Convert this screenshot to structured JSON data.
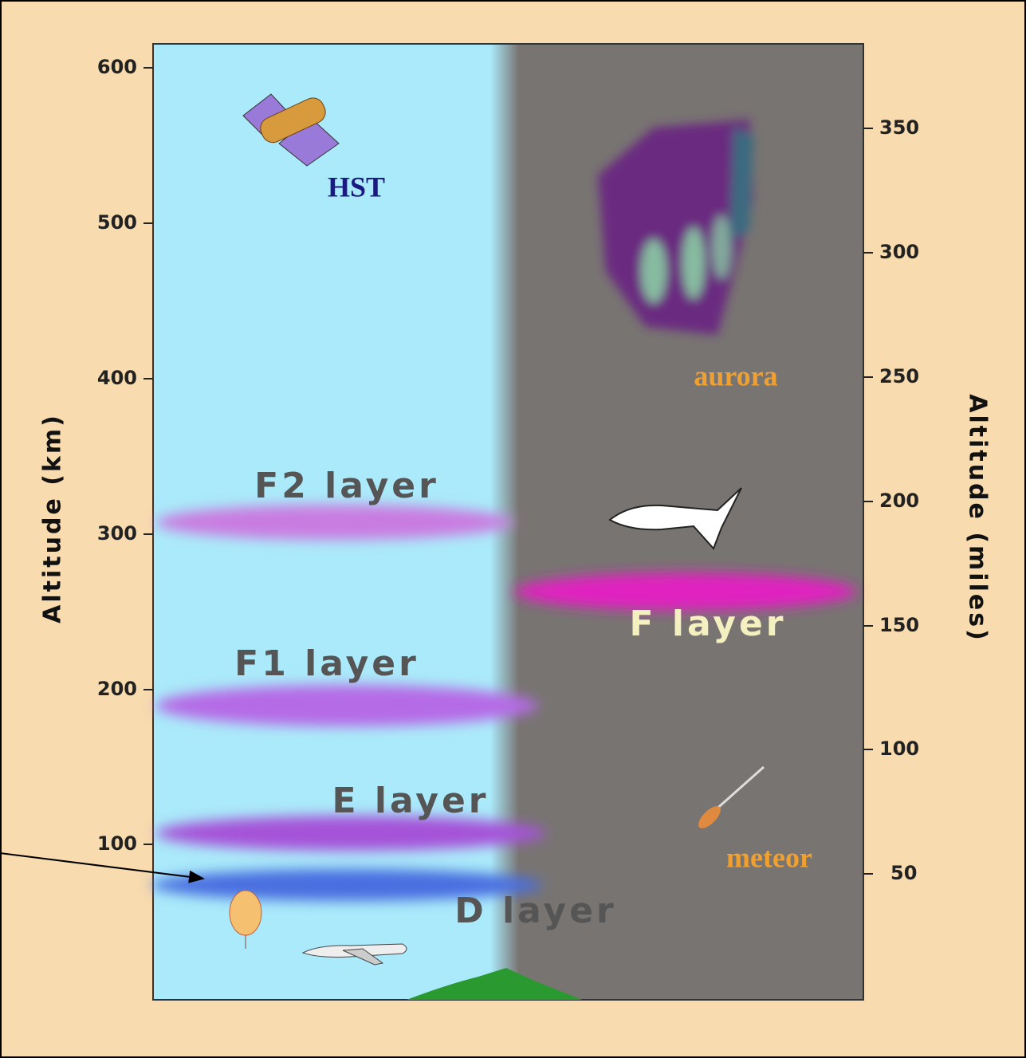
{
  "left_axis": {
    "label": "Altitude  (km)",
    "ticks": [
      600,
      500,
      400,
      300,
      200,
      100
    ]
  },
  "right_axis": {
    "label": "Altitude  (miles)",
    "ticks": [
      350,
      300,
      250,
      200,
      150,
      100,
      50
    ]
  },
  "layers": [
    "F2 layer",
    "F1 layer",
    "E layer",
    "D layer",
    "F layer"
  ],
  "objects": [
    "HST",
    "aurora",
    "meteor"
  ]
}
